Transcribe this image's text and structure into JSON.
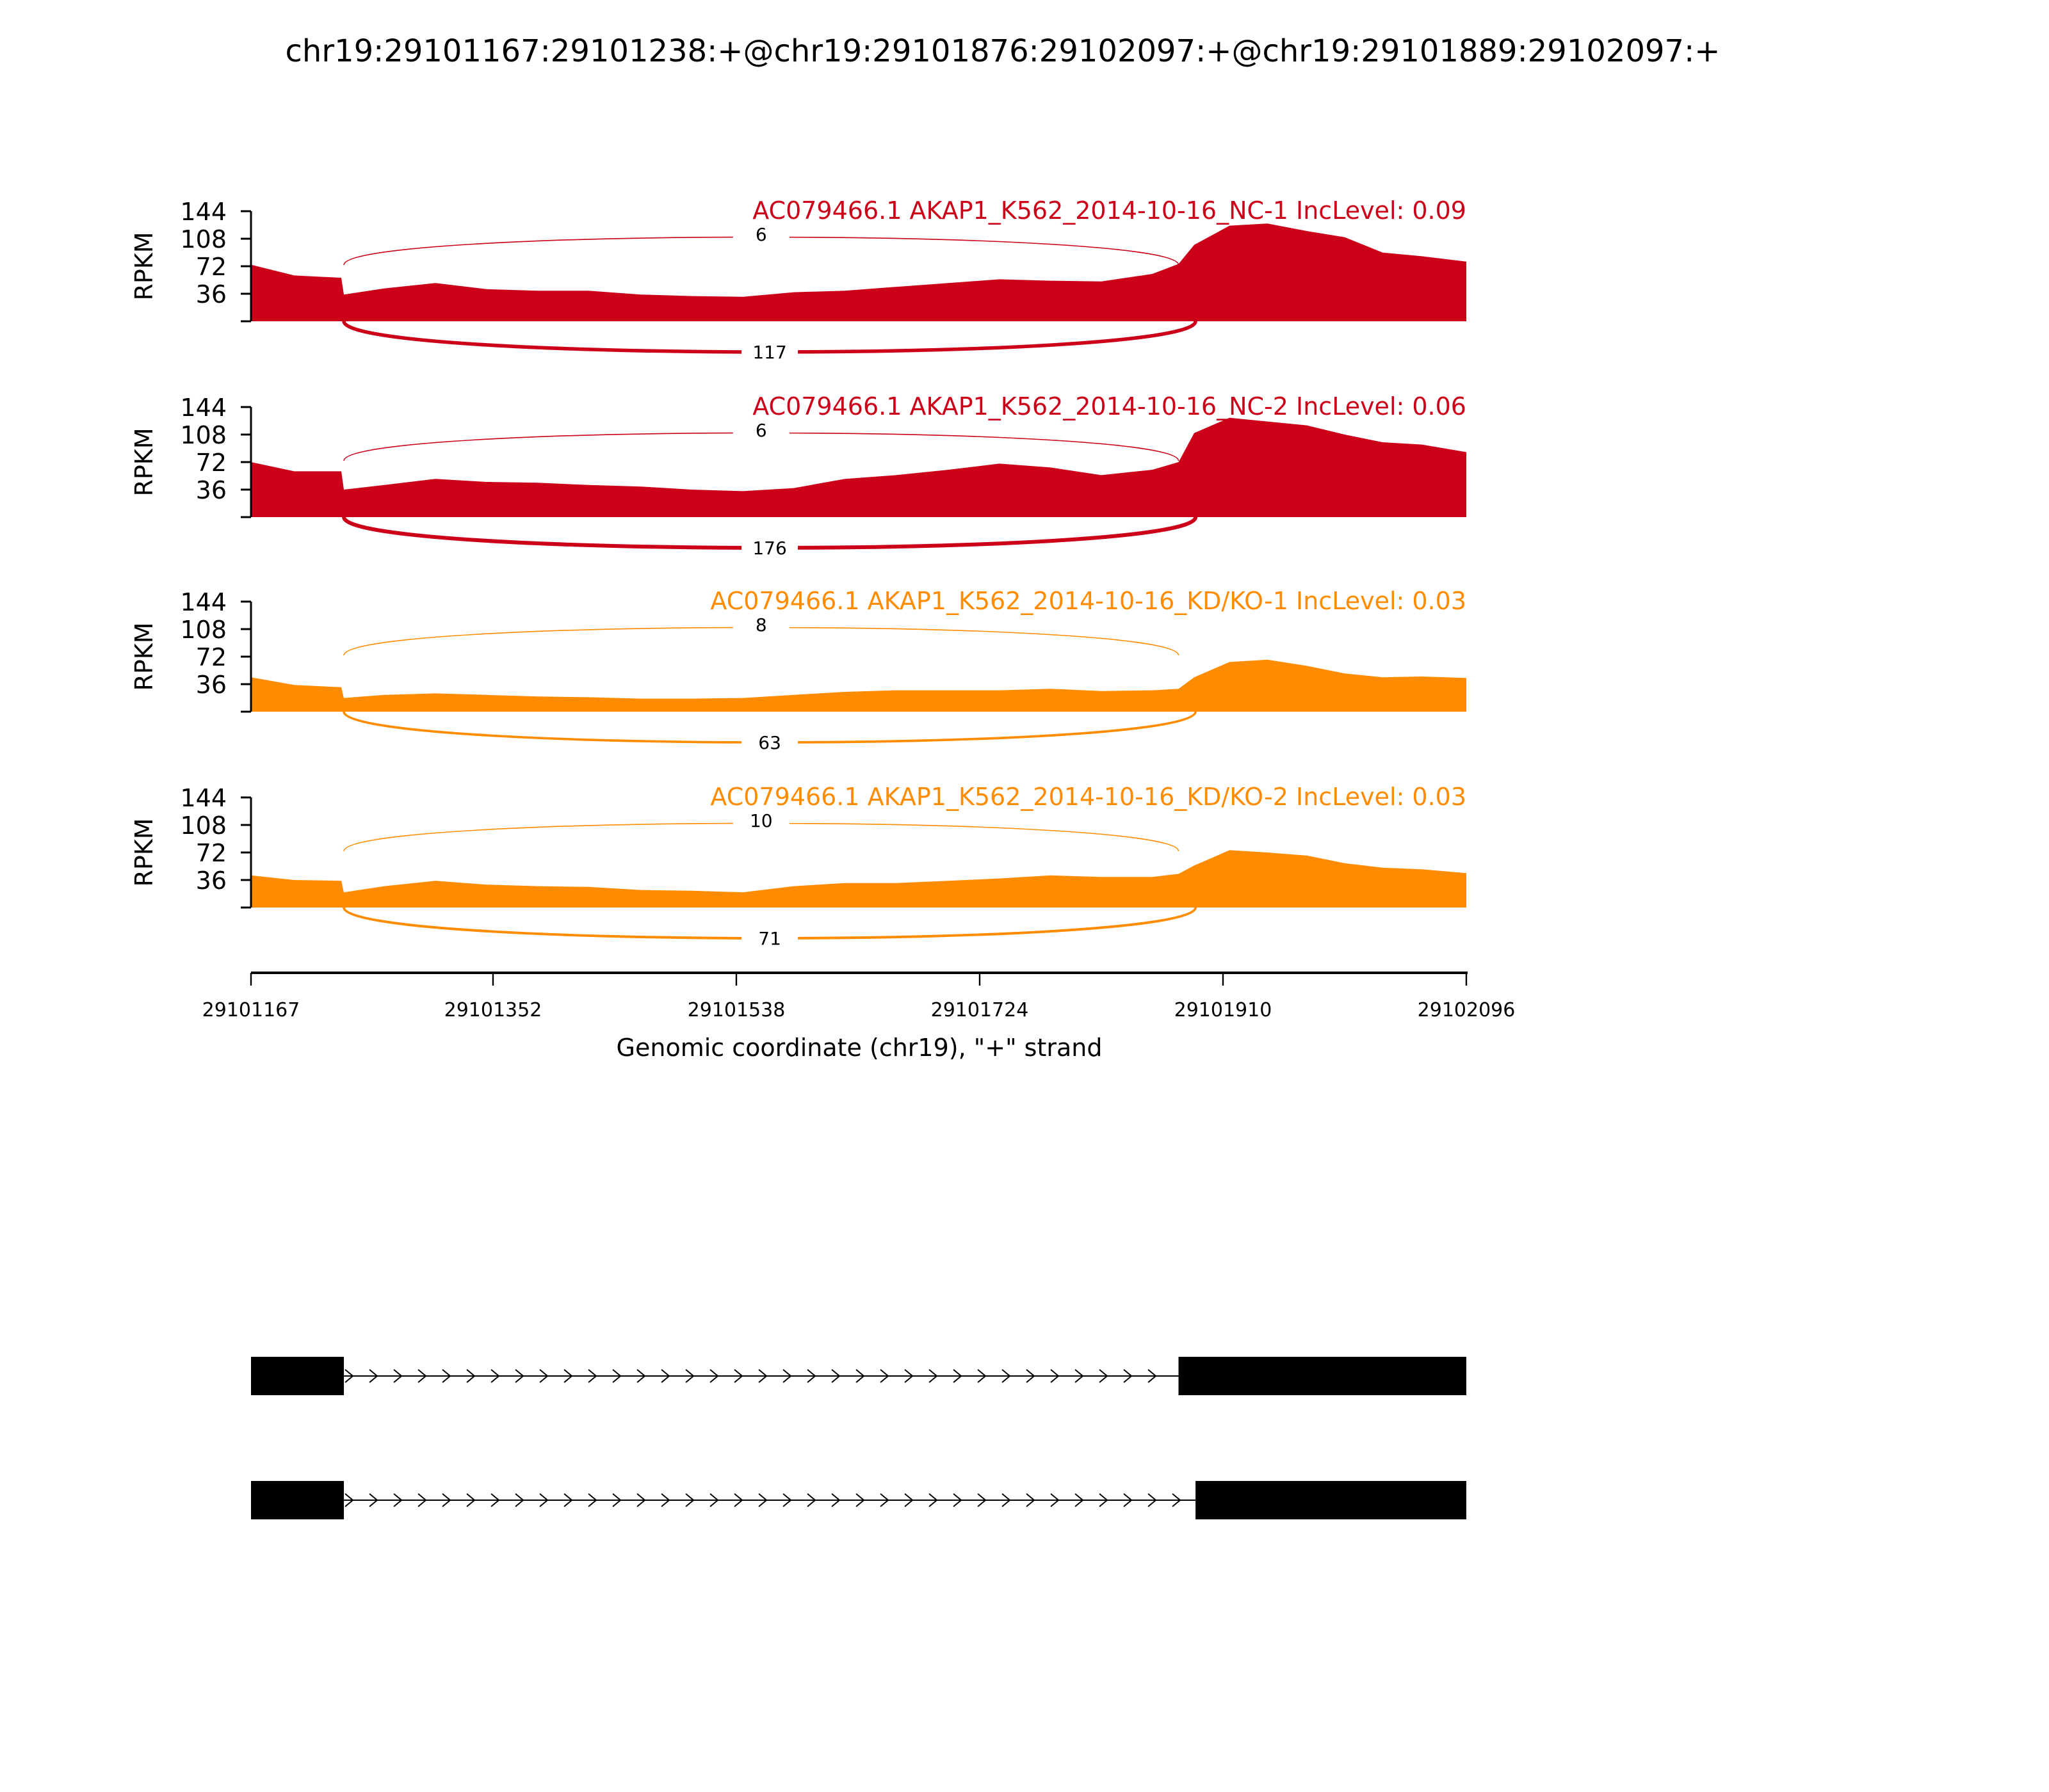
{
  "chart_data": {
    "type": "area",
    "title": "chr19:29101167:29101238:+@chr19:29101876:29102097:+@chr19:29101889:29102097:+",
    "xlabel": "Genomic coordinate (chr19), \"+\" strand",
    "ylabel": "RPKM",
    "xlim": [
      29101167,
      29102096
    ],
    "ylim": [
      0,
      144
    ],
    "xticks": [
      "29101167",
      "29101352",
      "29101538",
      "29101724",
      "29101910",
      "29102096"
    ],
    "yticks": [
      "36",
      "72",
      "108",
      "144"
    ],
    "x": [
      29101167,
      29101200,
      29101236,
      29101238,
      29101269,
      29101308,
      29101347,
      29101386,
      29101425,
      29101465,
      29101504,
      29101543,
      29101582,
      29101621,
      29101660,
      29101700,
      29101739,
      29101778,
      29101817,
      29101856,
      29101876,
      29101888,
      29101915,
      29101944,
      29101974,
      29102003,
      29102032,
      29102062,
      29102096
    ],
    "series": [
      {
        "name": "AC079466.1 AKAP1_K562_2014-10-16_NC-1 IncLevel: 0.09",
        "color": "#cc0018",
        "values": [
          74,
          60,
          57,
          35,
          43,
          50,
          42,
          40,
          40,
          35,
          33,
          32,
          38,
          40,
          45,
          50,
          55,
          53,
          52,
          62,
          75,
          100,
          125,
          128,
          118,
          110,
          90,
          85,
          78
        ],
        "junctions": [
          {
            "start": 29101238,
            "end": 29101876,
            "count": "6",
            "side": "top"
          },
          {
            "start": 29101238,
            "end": 29101889,
            "count": "117",
            "side": "bottom"
          }
        ]
      },
      {
        "name": "AC079466.1 AKAP1_K562_2014-10-16_NC-2 IncLevel: 0.06",
        "color": "#cc0018",
        "values": [
          72,
          60,
          60,
          36,
          42,
          50,
          46,
          45,
          42,
          40,
          36,
          34,
          38,
          50,
          55,
          62,
          70,
          65,
          55,
          62,
          72,
          110,
          130,
          125,
          120,
          108,
          98,
          95,
          85
        ],
        "junctions": [
          {
            "start": 29101238,
            "end": 29101876,
            "count": "6",
            "side": "top"
          },
          {
            "start": 29101238,
            "end": 29101889,
            "count": "176",
            "side": "bottom"
          }
        ]
      },
      {
        "name": "AC079466.1 AKAP1_K562_2014-10-16_KD/KO-1 IncLevel: 0.03",
        "color": "#ff8c00",
        "values": [
          45,
          35,
          32,
          18,
          22,
          24,
          22,
          20,
          19,
          17,
          17,
          18,
          22,
          26,
          28,
          28,
          28,
          30,
          27,
          28,
          30,
          45,
          65,
          68,
          60,
          50,
          45,
          46,
          44
        ],
        "junctions": [
          {
            "start": 29101238,
            "end": 29101876,
            "count": "8",
            "side": "top"
          },
          {
            "start": 29101238,
            "end": 29101889,
            "count": "63",
            "side": "bottom"
          }
        ]
      },
      {
        "name": "AC079466.1 AKAP1_K562_2014-10-16_KD/KO-2 IncLevel: 0.03",
        "color": "#ff8c00",
        "values": [
          42,
          36,
          35,
          20,
          28,
          35,
          30,
          28,
          27,
          23,
          22,
          20,
          28,
          32,
          32,
          35,
          38,
          42,
          40,
          40,
          44,
          55,
          75,
          72,
          68,
          58,
          52,
          50,
          45
        ],
        "junctions": [
          {
            "start": 29101238,
            "end": 29101876,
            "count": "10",
            "side": "top"
          },
          {
            "start": 29101238,
            "end": 29101889,
            "count": "71",
            "side": "bottom"
          }
        ]
      }
    ],
    "transcripts": [
      {
        "exons": [
          [
            29101167,
            29101238
          ],
          [
            29101876,
            29102096
          ]
        ]
      },
      {
        "exons": [
          [
            29101167,
            29101238
          ],
          [
            29101889,
            29102096
          ]
        ]
      }
    ]
  }
}
